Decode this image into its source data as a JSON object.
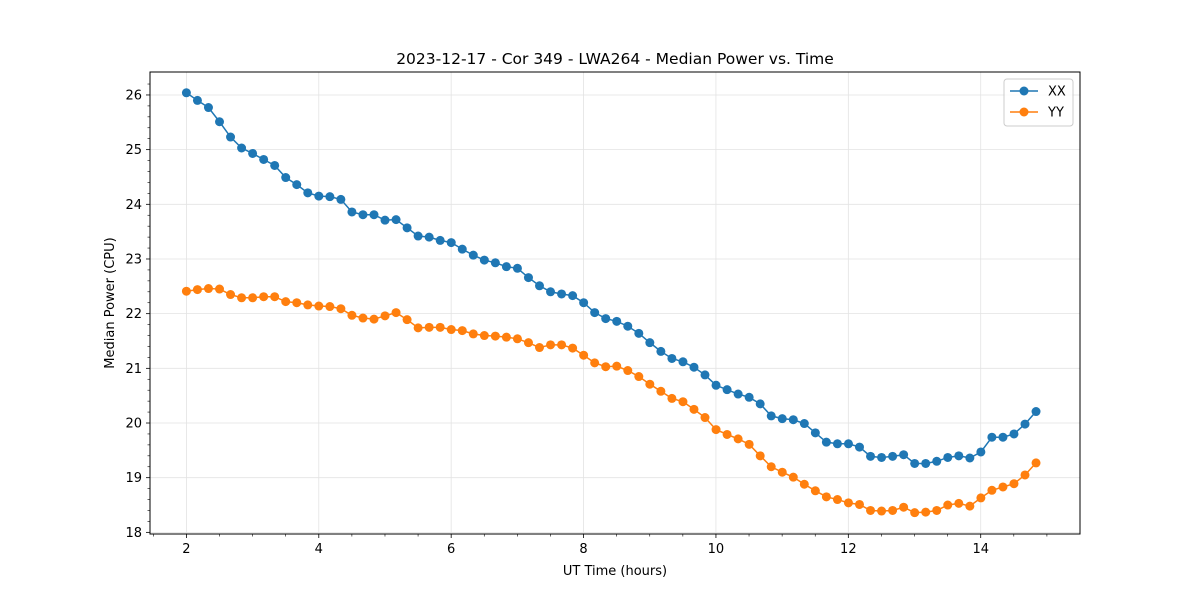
{
  "chart_data": {
    "type": "line",
    "title": "2023-12-17 - Cor 349 - LWA264 - Median Power vs. Time",
    "xlabel": "UT Time (hours)",
    "ylabel": "Median Power (CPU)",
    "xlim": [
      1.45,
      15.5
    ],
    "ylim": [
      17.97,
      26.42
    ],
    "x_ticks": [
      2,
      4,
      6,
      8,
      10,
      12,
      14
    ],
    "x_tick_labels": [
      "2",
      "4",
      "6",
      "8",
      "10",
      "12",
      "14"
    ],
    "y_ticks": [
      18,
      19,
      20,
      21,
      22,
      23,
      24,
      25,
      26
    ],
    "y_tick_labels": [
      "18",
      "19",
      "20",
      "21",
      "22",
      "23",
      "24",
      "25",
      "26"
    ],
    "grid": true,
    "legend_position": "top-right",
    "x_start": 2.0,
    "x_step": 0.1667,
    "series": [
      {
        "name": "XX",
        "color": "#1f77b4",
        "values": [
          26.04,
          25.9,
          25.77,
          25.51,
          25.23,
          25.03,
          24.93,
          24.82,
          24.71,
          24.49,
          24.36,
          24.21,
          24.15,
          24.14,
          24.09,
          23.86,
          23.81,
          23.81,
          23.71,
          23.72,
          23.57,
          23.42,
          23.4,
          23.34,
          23.3,
          23.18,
          23.07,
          22.98,
          22.93,
          22.86,
          22.83,
          22.66,
          22.51,
          22.4,
          22.36,
          22.33,
          22.2,
          22.02,
          21.91,
          21.86,
          21.77,
          21.64,
          21.47,
          21.31,
          21.18,
          21.12,
          21.02,
          20.88,
          20.69,
          20.61,
          20.53,
          20.47,
          20.35,
          20.13,
          20.08,
          20.06,
          19.99,
          19.82,
          19.65,
          19.62,
          19.62,
          19.56,
          19.39,
          19.37,
          19.39,
          19.42,
          19.26,
          19.26,
          19.3,
          19.37,
          19.4,
          19.36,
          19.47,
          19.74,
          19.74,
          19.8,
          19.98,
          20.21
        ]
      },
      {
        "name": "YY",
        "color": "#ff7f0e",
        "values": [
          22.41,
          22.44,
          22.46,
          22.45,
          22.35,
          22.29,
          22.29,
          22.31,
          22.31,
          22.22,
          22.2,
          22.16,
          22.14,
          22.13,
          22.09,
          21.97,
          21.92,
          21.9,
          21.96,
          22.02,
          21.89,
          21.74,
          21.75,
          21.75,
          21.71,
          21.69,
          21.63,
          21.6,
          21.59,
          21.57,
          21.54,
          21.47,
          21.38,
          21.43,
          21.43,
          21.37,
          21.24,
          21.1,
          21.03,
          21.04,
          20.96,
          20.85,
          20.71,
          20.58,
          20.45,
          20.39,
          20.25,
          20.1,
          19.88,
          19.79,
          19.71,
          19.61,
          19.4,
          19.2,
          19.1,
          19.01,
          18.88,
          18.76,
          18.65,
          18.6,
          18.54,
          18.51,
          18.4,
          18.39,
          18.4,
          18.46,
          18.36,
          18.37,
          18.4,
          18.5,
          18.53,
          18.48,
          18.63,
          18.77,
          18.83,
          18.89,
          19.05,
          19.27
        ]
      }
    ]
  }
}
